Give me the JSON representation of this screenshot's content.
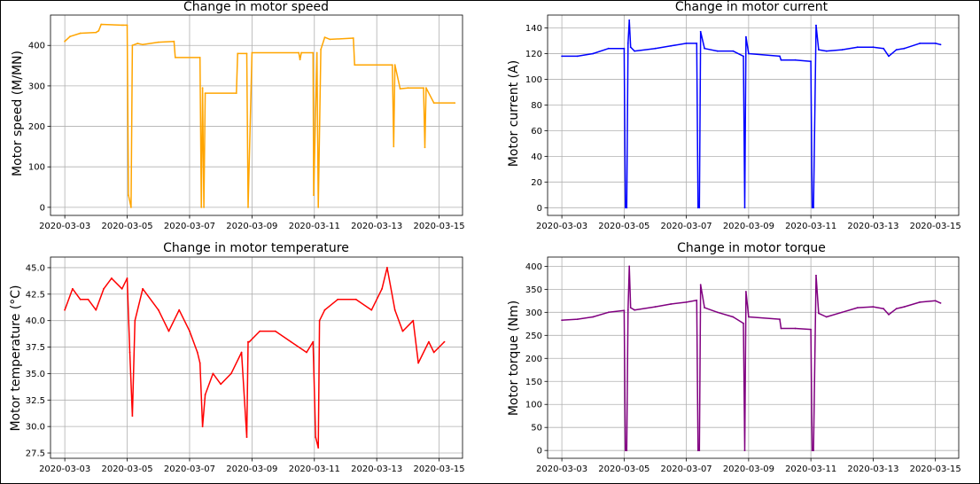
{
  "chart_data": [
    {
      "type": "line",
      "title": "Change in motor speed",
      "ylabel": "Motor speed (M/MN)",
      "xlabel": "",
      "color": "#ffa500",
      "xlim": [
        "2020-03-02T13:00",
        "2020-03-15T18:00"
      ],
      "ylim": [
        -20,
        475
      ],
      "xticks": [
        "2020-03-03",
        "2020-03-05",
        "2020-03-07",
        "2020-03-09",
        "2020-03-11",
        "2020-03-13",
        "2020-03-15"
      ],
      "yticks": [
        0,
        100,
        200,
        300,
        400
      ],
      "grid": true,
      "series": [
        {
          "x": [
            "2020-03-03T00:00",
            "2020-03-03T04:00",
            "2020-03-03T12:00",
            "2020-03-04T00:00",
            "2020-03-04T02:00",
            "2020-03-04T04:00",
            "2020-03-04T20:00",
            "2020-03-04T21:00",
            "2020-03-05T00:00",
            "2020-03-05T01:00",
            "2020-03-05T03:00",
            "2020-03-05T04:00",
            "2020-03-05T08:00",
            "2020-03-05T12:00",
            "2020-03-06T00:00",
            "2020-03-06T12:00",
            "2020-03-06T13:00",
            "2020-03-07T08:00",
            "2020-03-07T09:00",
            "2020-03-07T10:00",
            "2020-03-07T11:00",
            "2020-03-07T12:00",
            "2020-03-08T12:00",
            "2020-03-08T13:00",
            "2020-03-08T20:00",
            "2020-03-08T21:00",
            "2020-03-09T00:00",
            "2020-03-10T12:00",
            "2020-03-10T13:00",
            "2020-03-10T14:00",
            "2020-03-10T23:00",
            "2020-03-10T23:30",
            "2020-03-11T02:00",
            "2020-03-11T03:00",
            "2020-03-11T05:00",
            "2020-03-11T08:00",
            "2020-03-11T12:00",
            "2020-03-12T06:00",
            "2020-03-12T07:00",
            "2020-03-13T12:00",
            "2020-03-13T13:00",
            "2020-03-13T14:00",
            "2020-03-13T18:00",
            "2020-03-14T00:00",
            "2020-03-14T12:00",
            "2020-03-14T13:00",
            "2020-03-14T14:00",
            "2020-03-14T20:00",
            "2020-03-15T12:00"
          ],
          "y": [
            410,
            422,
            430,
            432,
            436,
            452,
            450,
            450,
            450,
            30,
            0,
            400,
            405,
            402,
            408,
            410,
            370,
            370,
            0,
            295,
            0,
            282,
            282,
            380,
            380,
            0,
            382,
            382,
            365,
            382,
            382,
            30,
            382,
            0,
            390,
            420,
            415,
            418,
            352,
            352,
            150,
            352,
            293,
            295,
            295,
            148,
            295,
            258,
            258
          ]
        }
      ]
    },
    {
      "type": "line",
      "title": "Change in motor current",
      "ylabel": "Motor current (A)",
      "xlabel": "",
      "color": "#0000ff",
      "xlim": [
        "2020-03-02T13:00",
        "2020-03-15T18:00"
      ],
      "ylim": [
        -6,
        150
      ],
      "xticks": [
        "2020-03-03",
        "2020-03-05",
        "2020-03-07",
        "2020-03-09",
        "2020-03-11",
        "2020-03-13",
        "2020-03-15"
      ],
      "yticks": [
        0,
        20,
        40,
        60,
        80,
        100,
        120,
        140
      ],
      "grid": true,
      "series": [
        {
          "x": [
            "2020-03-03T00:00",
            "2020-03-03T12:00",
            "2020-03-04T00:00",
            "2020-03-04T12:00",
            "2020-03-05T00:00",
            "2020-03-05T01:00",
            "2020-03-05T02:00",
            "2020-03-05T03:00",
            "2020-03-05T04:00",
            "2020-03-05T05:00",
            "2020-03-05T08:00",
            "2020-03-06T00:00",
            "2020-03-06T12:00",
            "2020-03-07T00:00",
            "2020-03-07T08:00",
            "2020-03-07T09:00",
            "2020-03-07T10:00",
            "2020-03-07T11:00",
            "2020-03-07T14:00",
            "2020-03-08T00:00",
            "2020-03-08T12:00",
            "2020-03-08T20:00",
            "2020-03-08T21:00",
            "2020-03-08T22:00",
            "2020-03-09T00:00",
            "2020-03-10T00:00",
            "2020-03-10T01:00",
            "2020-03-10T12:00",
            "2020-03-11T00:00",
            "2020-03-11T01:00",
            "2020-03-11T02:00",
            "2020-03-11T04:00",
            "2020-03-11T06:00",
            "2020-03-11T12:00",
            "2020-03-12T00:00",
            "2020-03-12T12:00",
            "2020-03-13T00:00",
            "2020-03-13T08:00",
            "2020-03-13T12:00",
            "2020-03-13T18:00",
            "2020-03-14T00:00",
            "2020-03-14T12:00",
            "2020-03-15T00:00",
            "2020-03-15T04:00"
          ],
          "y": [
            118,
            118,
            120,
            124,
            124,
            0,
            0,
            128,
            146,
            125,
            122,
            124,
            126,
            128,
            128,
            0,
            0,
            137,
            124,
            122,
            122,
            118,
            0,
            133,
            120,
            118,
            115,
            115,
            114,
            0,
            0,
            142,
            123,
            122,
            123,
            125,
            125,
            124,
            118,
            123,
            124,
            128,
            128,
            127
          ]
        }
      ]
    },
    {
      "type": "line",
      "title": "Change in motor temperature",
      "ylabel": "Motor temperature (°C)",
      "xlabel": "",
      "color": "#ff0000",
      "xlim": [
        "2020-03-02T13:00",
        "2020-03-15T18:00"
      ],
      "ylim": [
        27,
        46
      ],
      "xticks": [
        "2020-03-03",
        "2020-03-05",
        "2020-03-07",
        "2020-03-09",
        "2020-03-11",
        "2020-03-13",
        "2020-03-15"
      ],
      "yticks": [
        27.5,
        30.0,
        32.5,
        35.0,
        37.5,
        40.0,
        42.5,
        45.0
      ],
      "grid": true,
      "series": [
        {
          "x": [
            "2020-03-03T00:00",
            "2020-03-03T06:00",
            "2020-03-03T12:00",
            "2020-03-03T18:00",
            "2020-03-04T00:00",
            "2020-03-04T06:00",
            "2020-03-04T12:00",
            "2020-03-04T20:00",
            "2020-03-05T00:00",
            "2020-03-05T02:00",
            "2020-03-05T04:00",
            "2020-03-05T06:00",
            "2020-03-05T12:00",
            "2020-03-06T00:00",
            "2020-03-06T08:00",
            "2020-03-06T16:00",
            "2020-03-07T00:00",
            "2020-03-07T06:00",
            "2020-03-07T08:00",
            "2020-03-07T10:00",
            "2020-03-07T12:00",
            "2020-03-07T18:00",
            "2020-03-08T00:00",
            "2020-03-08T08:00",
            "2020-03-08T16:00",
            "2020-03-08T20:00",
            "2020-03-08T21:00",
            "2020-03-08T22:00",
            "2020-03-09T06:00",
            "2020-03-09T18:00",
            "2020-03-10T06:00",
            "2020-03-10T18:00",
            "2020-03-10T23:00",
            "2020-03-11T01:00",
            "2020-03-11T03:00",
            "2020-03-11T04:00",
            "2020-03-11T08:00",
            "2020-03-11T18:00",
            "2020-03-12T08:00",
            "2020-03-12T20:00",
            "2020-03-13T04:00",
            "2020-03-13T08:00",
            "2020-03-13T14:00",
            "2020-03-13T20:00",
            "2020-03-14T04:00",
            "2020-03-14T08:00",
            "2020-03-14T16:00",
            "2020-03-14T20:00",
            "2020-03-15T04:00"
          ],
          "y": [
            41,
            43,
            42,
            42,
            41,
            43,
            44,
            43,
            44,
            37,
            31,
            40,
            43,
            41,
            39,
            41,
            39,
            37,
            36,
            30,
            33,
            35,
            34,
            35,
            37,
            29,
            38,
            38,
            39,
            39,
            38,
            37,
            38,
            29,
            28,
            40,
            41,
            42,
            42,
            41,
            43,
            45,
            41,
            39,
            40,
            36,
            38,
            37,
            38
          ]
        }
      ]
    },
    {
      "type": "line",
      "title": "Change in motor torque",
      "ylabel": "Motor torque (Nm)",
      "xlabel": "",
      "color": "#800080",
      "xlim": [
        "2020-03-02T13:00",
        "2020-03-15T18:00"
      ],
      "ylim": [
        -17,
        420
      ],
      "xticks": [
        "2020-03-03",
        "2020-03-05",
        "2020-03-07",
        "2020-03-09",
        "2020-03-11",
        "2020-03-13",
        "2020-03-15"
      ],
      "yticks": [
        0,
        50,
        100,
        150,
        200,
        250,
        300,
        350,
        400
      ],
      "grid": true,
      "series": [
        {
          "x": [
            "2020-03-03T00:00",
            "2020-03-03T12:00",
            "2020-03-04T00:00",
            "2020-03-04T12:00",
            "2020-03-05T00:00",
            "2020-03-05T01:00",
            "2020-03-05T02:00",
            "2020-03-05T03:00",
            "2020-03-05T04:00",
            "2020-03-05T05:00",
            "2020-03-05T08:00",
            "2020-03-06T00:00",
            "2020-03-06T12:00",
            "2020-03-07T00:00",
            "2020-03-07T08:00",
            "2020-03-07T09:00",
            "2020-03-07T10:00",
            "2020-03-07T11:00",
            "2020-03-07T14:00",
            "2020-03-08T00:00",
            "2020-03-08T12:00",
            "2020-03-08T20:00",
            "2020-03-08T21:00",
            "2020-03-08T22:00",
            "2020-03-09T00:00",
            "2020-03-10T00:00",
            "2020-03-10T01:00",
            "2020-03-10T12:00",
            "2020-03-11T00:00",
            "2020-03-11T01:00",
            "2020-03-11T02:00",
            "2020-03-11T04:00",
            "2020-03-11T06:00",
            "2020-03-11T12:00",
            "2020-03-12T00:00",
            "2020-03-12T12:00",
            "2020-03-13T00:00",
            "2020-03-13T08:00",
            "2020-03-13T12:00",
            "2020-03-13T18:00",
            "2020-03-14T00:00",
            "2020-03-14T12:00",
            "2020-03-15T00:00",
            "2020-03-15T04:00"
          ],
          "y": [
            283,
            285,
            290,
            300,
            304,
            0,
            0,
            305,
            400,
            310,
            305,
            312,
            318,
            322,
            326,
            0,
            0,
            360,
            310,
            300,
            290,
            276,
            0,
            345,
            290,
            285,
            265,
            265,
            263,
            0,
            0,
            380,
            298,
            290,
            300,
            310,
            312,
            308,
            295,
            308,
            312,
            322,
            325,
            320
          ]
        }
      ]
    }
  ]
}
